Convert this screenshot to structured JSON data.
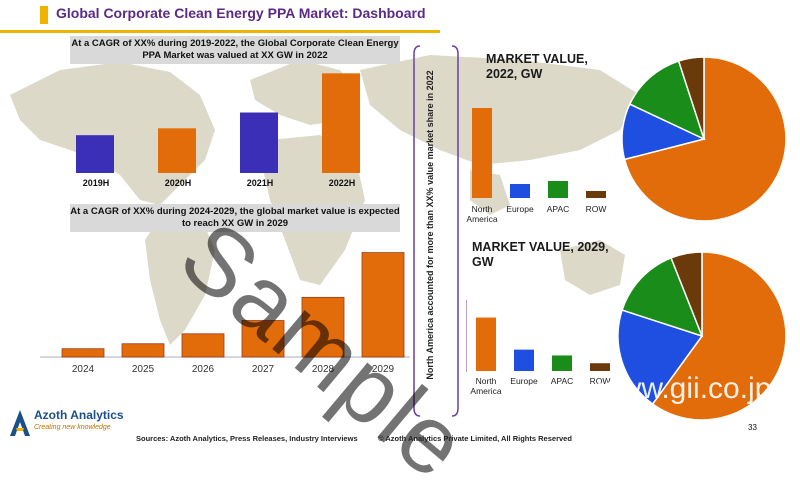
{
  "header": {
    "title": "Global Corporate Clean Energy PPA Market: Dashboard"
  },
  "banners": {
    "historic": "At a CAGR of XX% during 2019-2022, the Global Corporate Clean Energy PPA Market was valued at XX GW in 2022",
    "forecast": "At a CAGR of XX% during 2024-2029, the global market value is expected to reach XX GW in 2029"
  },
  "side_note": "North America accounted for more than XX% value market share in 2022",
  "footer": {
    "sources": "Sources: Azoth Analytics, Press Releases, Industry Interviews",
    "copyright": "© Azoth Analytics Private Limited, All Rights Reserved",
    "page": "33"
  },
  "logo": {
    "name": "Azoth Analytics",
    "tagline": "Creating new knowledge"
  },
  "watermarks": {
    "sample": "Sample",
    "site": "www.gii.co.jp"
  },
  "colors": {
    "accent": "#f0b400",
    "title": "#5b2a86",
    "historic_bar": "#3b2fb8",
    "orange": "#e36c0a",
    "blue": "#1f4fe0",
    "green": "#1a8c1a",
    "brown": "#6b3a0a"
  },
  "chart_data": [
    {
      "type": "bar",
      "categories": [
        "2019H",
        "2020H",
        "2021H",
        "2022H"
      ],
      "values": [
        5.5,
        6.5,
        8.8,
        14.5
      ],
      "ylim": [
        0,
        16
      ]
    },
    {
      "type": "bar",
      "categories": [
        "2024",
        "2025",
        "2026",
        "2027",
        "2028",
        "2029"
      ],
      "values": [
        0.5,
        0.8,
        1.4,
        2.2,
        3.6,
        6.3
      ],
      "ylim": [
        0,
        7
      ]
    },
    {
      "type": "bar",
      "title": "MARKET VALUE, 2022, GW",
      "categories": [
        "North America",
        "Europe",
        "APAC",
        "ROW"
      ],
      "values": [
        9.0,
        1.4,
        1.7,
        0.7
      ],
      "ylim": [
        0,
        10
      ]
    },
    {
      "type": "pie",
      "categories": [
        "North America",
        "Europe",
        "APAC",
        "ROW"
      ],
      "values": [
        71,
        11,
        13,
        5
      ]
    },
    {
      "type": "bar",
      "title": "MARKET VALUE, 2029, GW",
      "categories": [
        "North America",
        "Europe",
        "APAC",
        "ROW"
      ],
      "values": [
        5.5,
        2.2,
        1.6,
        0.8
      ],
      "ylim": [
        0,
        7
      ]
    },
    {
      "type": "pie",
      "categories": [
        "North America",
        "Europe",
        "APAC",
        "ROW"
      ],
      "values": [
        60,
        20,
        14,
        6
      ]
    }
  ]
}
